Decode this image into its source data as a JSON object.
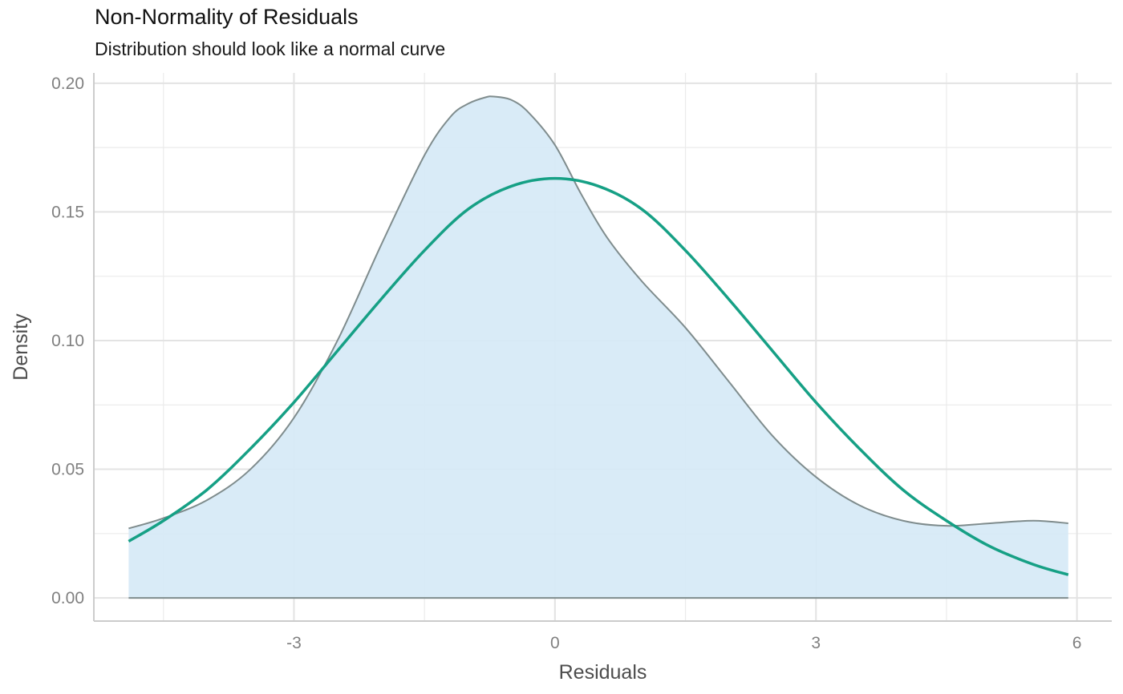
{
  "chart_data": {
    "type": "area",
    "title": "Non-Normality of Residuals",
    "subtitle": "Distribution should look like a normal curve",
    "xlabel": "Residuals",
    "ylabel": "Density",
    "xlim": [
      -5.3,
      6.4
    ],
    "ylim": [
      -0.009,
      0.204
    ],
    "x_ticks": [
      -3,
      0,
      3,
      6
    ],
    "x_tick_labels": [
      "-3",
      "0",
      "3",
      "6"
    ],
    "y_ticks": [
      0.0,
      0.05,
      0.1,
      0.15,
      0.2
    ],
    "y_tick_labels": [
      "0.00",
      "0.05",
      "0.10",
      "0.15",
      "0.20"
    ],
    "grid": true,
    "series": [
      {
        "kind": "density",
        "color": "#7f8c8d",
        "fill": "#d6e9f6",
        "x": [
          -4.9,
          -4.5,
          -4.0,
          -3.5,
          -3.0,
          -2.5,
          -2.0,
          -1.5,
          -1.2,
          -1.0,
          -0.8,
          -0.7,
          -0.5,
          -0.3,
          0.0,
          0.3,
          0.6,
          1.0,
          1.5,
          2.0,
          2.5,
          3.0,
          3.5,
          4.0,
          4.5,
          5.0,
          5.5,
          5.9
        ],
        "y": [
          0.027,
          0.031,
          0.038,
          0.05,
          0.07,
          0.1,
          0.137,
          0.172,
          0.187,
          0.192,
          0.1945,
          0.1948,
          0.1935,
          0.1885,
          0.176,
          0.157,
          0.14,
          0.123,
          0.105,
          0.084,
          0.063,
          0.047,
          0.036,
          0.03,
          0.028,
          0.029,
          0.03,
          0.029
        ]
      },
      {
        "kind": "normal",
        "color": "#16a085",
        "x": [
          -4.9,
          -4.5,
          -4.0,
          -3.5,
          -3.0,
          -2.5,
          -2.0,
          -1.5,
          -1.0,
          -0.5,
          0.0,
          0.5,
          1.0,
          1.5,
          2.0,
          2.5,
          3.0,
          3.5,
          4.0,
          4.5,
          5.0,
          5.5,
          5.9
        ],
        "y": [
          0.022,
          0.03,
          0.042,
          0.058,
          0.076,
          0.096,
          0.116,
          0.135,
          0.151,
          0.16,
          0.163,
          0.16,
          0.151,
          0.135,
          0.116,
          0.096,
          0.076,
          0.058,
          0.042,
          0.03,
          0.02,
          0.013,
          0.009
        ]
      }
    ]
  }
}
